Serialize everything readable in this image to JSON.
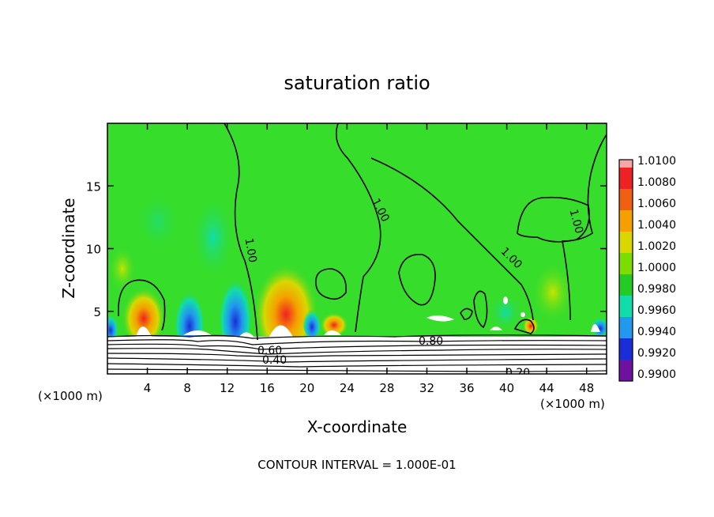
{
  "chart_data": {
    "type": "heatmap",
    "title": "saturation ratio",
    "xlabel": "X-coordinate",
    "ylabel": "Z-coordinate",
    "x_unit": "(×1000 m)",
    "x_unit_right": "(×1000 m)",
    "xlim": [
      0,
      50
    ],
    "ylim": [
      0,
      20
    ],
    "x_ticks": [
      4,
      8,
      12,
      16,
      20,
      24,
      28,
      32,
      36,
      40,
      44,
      48
    ],
    "y_ticks": [
      5,
      10,
      15
    ],
    "colorbar": {
      "levels": [
        "1.0100",
        "1.0080",
        "1.0060",
        "1.0040",
        "1.0020",
        "1.0000",
        "0.9980",
        "0.9960",
        "0.9940",
        "0.9920",
        "0.9900"
      ],
      "colors": [
        "#f7a6a6",
        "#ee2222",
        "#f06010",
        "#f5a000",
        "#d8d800",
        "#7ddc00",
        "#22cc22",
        "#11ddaa",
        "#2299ee",
        "#1a2dd8",
        "#7010a0"
      ]
    },
    "background_color": "#36dd2a",
    "contour_labels": [
      "1.00",
      "1.00",
      "1.00",
      "1.00",
      "0.80",
      "0.60",
      "0.40",
      "0.20"
    ],
    "footer": "CONTOUR INTERVAL = 1.000E-01"
  }
}
